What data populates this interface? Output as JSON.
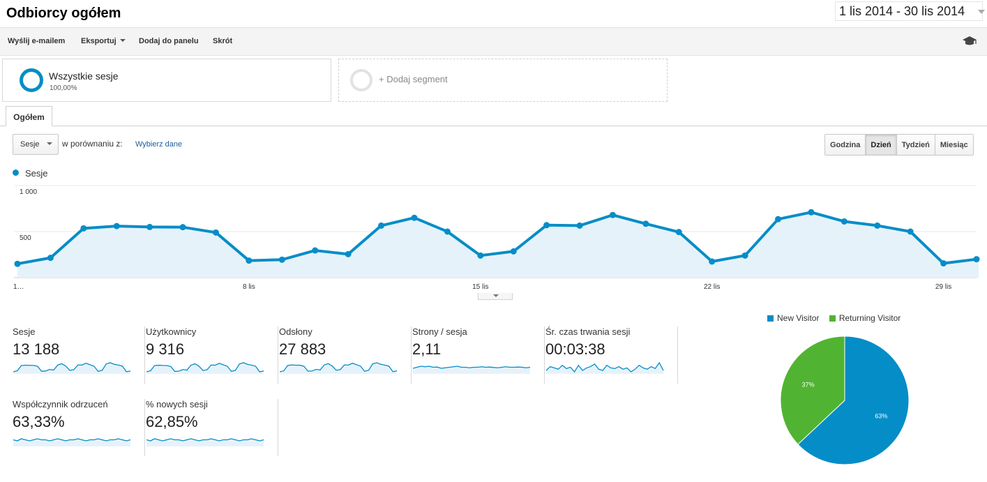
{
  "header": {
    "title": "Odbiorcy ogółem",
    "date_range": "1 lis 2014 - 30 lis 2014"
  },
  "toolbar": {
    "email": "Wyślij e-mailem",
    "export": "Eksportuj",
    "add_to_dashboard": "Dodaj do panelu",
    "shortcut": "Skrót"
  },
  "segments": {
    "all_sessions": "Wszystkie sesje",
    "all_sessions_pct": "100,00%",
    "add_segment": "+ Dodaj segment"
  },
  "tabs": {
    "overview": "Ogółem"
  },
  "controls": {
    "metric": "Sesje",
    "compare_label": "w porównaniu z:",
    "choose_data": "Wybierz dane",
    "granularity": [
      "Godzina",
      "Dzień",
      "Tydzień",
      "Miesiąc"
    ],
    "granularity_active": "Dzień"
  },
  "colors": {
    "accent": "#058dc7",
    "green": "#50b432",
    "fill": "#e6f2fa"
  },
  "icons": {
    "toolbar_right": "graduation-cap-icon"
  },
  "chart_data": [
    {
      "type": "area",
      "series": [
        {
          "name": "Sesje",
          "values": [
            150,
            215,
            535,
            560,
            550,
            548,
            490,
            185,
            195,
            295,
            255,
            565,
            650,
            500,
            240,
            285,
            570,
            565,
            680,
            585,
            495,
            175,
            240,
            635,
            710,
            610,
            565,
            500,
            155,
            200
          ]
        }
      ],
      "x": [
        1,
        2,
        3,
        4,
        5,
        6,
        7,
        8,
        9,
        10,
        11,
        12,
        13,
        14,
        15,
        16,
        17,
        18,
        19,
        20,
        21,
        22,
        23,
        24,
        25,
        26,
        27,
        28,
        29,
        30
      ],
      "x_tick_labels": [
        {
          "day": 1,
          "label": "1…"
        },
        {
          "day": 8,
          "label": "8 lis"
        },
        {
          "day": 15,
          "label": "15 lis"
        },
        {
          "day": 22,
          "label": "22 lis"
        },
        {
          "day": 29,
          "label": "29 lis"
        }
      ],
      "y_ticks": [
        {
          "value": 500,
          "label": "500"
        },
        {
          "value": 1000,
          "label": "1 000"
        }
      ],
      "ylim": [
        0,
        1000
      ],
      "grid": true,
      "legend": "top-left"
    },
    {
      "type": "pie",
      "categories": [
        "New Visitor",
        "Returning Visitor"
      ],
      "values": [
        63,
        37
      ],
      "labels": [
        "63%",
        "37%"
      ],
      "colors": [
        "#058dc7",
        "#50b432"
      ],
      "legend": "top"
    }
  ],
  "scorecards": [
    {
      "label": "Sesje",
      "value": "13 188",
      "spark": [
        150,
        215,
        535,
        560,
        550,
        548,
        490,
        185,
        195,
        295,
        255,
        565,
        650,
        500,
        240,
        285,
        570,
        565,
        680,
        585,
        495,
        175,
        240,
        635,
        710,
        610,
        565,
        500,
        155,
        200
      ]
    },
    {
      "label": "Użytkownicy",
      "value": "9 316",
      "spark": [
        120,
        170,
        420,
        440,
        430,
        425,
        380,
        140,
        150,
        230,
        200,
        440,
        510,
        390,
        180,
        220,
        450,
        440,
        530,
        460,
        390,
        140,
        190,
        500,
        560,
        480,
        440,
        390,
        120,
        160
      ]
    },
    {
      "label": "Odsłony",
      "value": "27 883",
      "spark": [
        300,
        420,
        1150,
        1200,
        1180,
        1170,
        1030,
        380,
        400,
        620,
        540,
        1200,
        1380,
        1060,
        500,
        600,
        1210,
        1190,
        1430,
        1240,
        1050,
        370,
        500,
        1340,
        1500,
        1290,
        1190,
        1050,
        320,
        420
      ]
    },
    {
      "label": "Strony / sesja",
      "value": "2,11",
      "spark": [
        2.0,
        2.1,
        2.2,
        2.15,
        2.2,
        2.1,
        2.12,
        2.0,
        2.05,
        2.1,
        2.15,
        2.2,
        2.1,
        2.1,
        2.05,
        2.1,
        2.1,
        2.15,
        2.1,
        2.12,
        2.08,
        2.05,
        2.1,
        2.15,
        2.1,
        2.1,
        2.12,
        2.1,
        2.05,
        2.1
      ]
    },
    {
      "label": "Śr. czas trwania sesji",
      "value": "00:03:38",
      "spark": [
        200,
        230,
        220,
        210,
        240,
        215,
        225,
        190,
        240,
        200,
        220,
        230,
        250,
        210,
        200,
        240,
        220,
        215,
        230,
        210,
        220,
        190,
        210,
        240,
        220,
        210,
        230,
        215,
        260,
        200
      ]
    },
    {
      "label": "Współczynnik odrzuceń",
      "value": "63,33%",
      "spark": [
        63,
        62,
        64,
        63,
        62,
        63,
        64,
        63,
        63,
        62,
        63,
        64,
        63,
        62,
        63,
        63,
        64,
        63,
        62,
        63,
        63,
        64,
        63,
        62,
        63,
        63,
        64,
        63,
        62,
        63
      ]
    },
    {
      "label": "% nowych sesji",
      "value": "62,85%",
      "spark": [
        63,
        62,
        64,
        63,
        62,
        63,
        64,
        63,
        63,
        62,
        63,
        64,
        63,
        62,
        63,
        63,
        64,
        63,
        62,
        63,
        63,
        64,
        63,
        62,
        63,
        63,
        64,
        63,
        62,
        63
      ]
    }
  ]
}
